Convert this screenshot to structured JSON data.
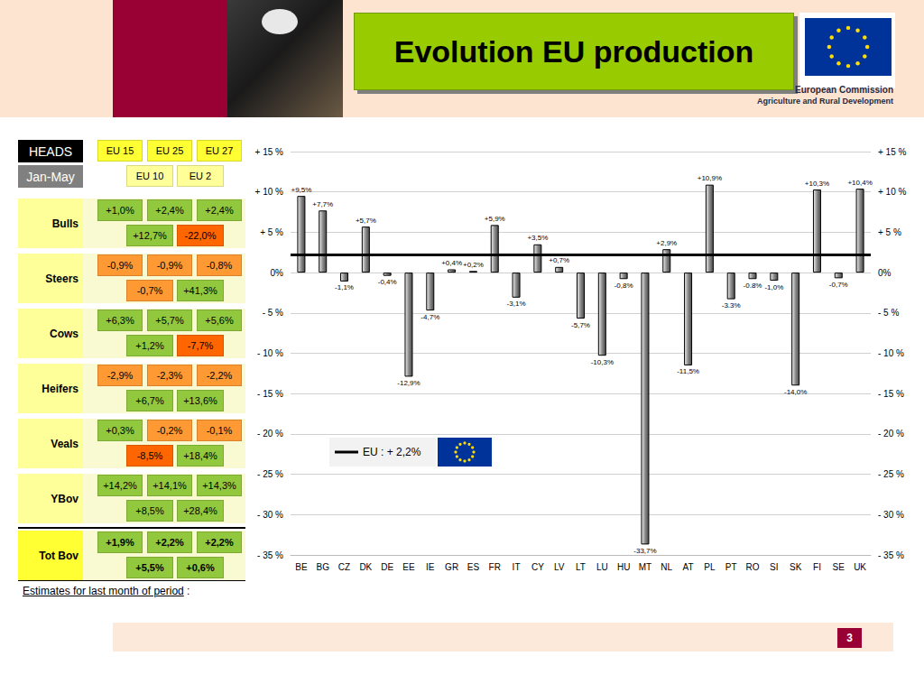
{
  "header": {
    "title": "Evolution EU production",
    "org": [
      "European Commission",
      "Agriculture and Rural Development"
    ]
  },
  "table": {
    "corner": [
      "HEADS",
      "Jan-May"
    ],
    "columns_top": [
      "EU 15",
      "EU 25",
      "EU 27"
    ],
    "columns_bottom": [
      "EU 10",
      "EU 2"
    ],
    "rows": [
      {
        "label": "Bulls",
        "top": [
          "+1,0%",
          "+2,4%",
          "+2,4%"
        ],
        "top_colors": [
          "#92c83e",
          "#92c83e",
          "#92c83e"
        ],
        "bottom": [
          "+12,7%",
          "-22,0%"
        ],
        "bottom_colors": [
          "#92c83e",
          "#ff6600"
        ]
      },
      {
        "label": "Steers",
        "top": [
          "-0,9%",
          "-0,9%",
          "-0,8%"
        ],
        "top_colors": [
          "#ff9933",
          "#ff9933",
          "#ff9933"
        ],
        "bottom": [
          "-0,7%",
          "+41,3%"
        ],
        "bottom_colors": [
          "#ff9933",
          "#92c83e"
        ]
      },
      {
        "label": "Cows",
        "top": [
          "+6,3%",
          "+5,7%",
          "+5,6%"
        ],
        "top_colors": [
          "#92c83e",
          "#92c83e",
          "#92c83e"
        ],
        "bottom": [
          "+1,2%",
          "-7,7%"
        ],
        "bottom_colors": [
          "#92c83e",
          "#ff6600"
        ]
      },
      {
        "label": "Heifers",
        "top": [
          "-2,9%",
          "-2,3%",
          "-2,2%"
        ],
        "top_colors": [
          "#ff9933",
          "#ff9933",
          "#ff9933"
        ],
        "bottom": [
          "+6,7%",
          "+13,6%"
        ],
        "bottom_colors": [
          "#92c83e",
          "#92c83e"
        ]
      },
      {
        "label": "Veals",
        "top": [
          "+0,3%",
          "-0,2%",
          "-0,1%"
        ],
        "top_colors": [
          "#92c83e",
          "#ff9933",
          "#ff9933"
        ],
        "bottom": [
          "-8,5%",
          "+18,4%"
        ],
        "bottom_colors": [
          "#ff6600",
          "#92c83e"
        ]
      },
      {
        "label": "YBov",
        "top": [
          "+14,2%",
          "+14,1%",
          "+14,3%"
        ],
        "top_colors": [
          "#92c83e",
          "#92c83e",
          "#92c83e"
        ],
        "bottom": [
          "+8,5%",
          "+28,4%"
        ],
        "bottom_colors": [
          "#92c83e",
          "#92c83e"
        ]
      }
    ],
    "total": {
      "label": "Tot Bov",
      "top": [
        "+1,9%",
        "+2,2%",
        "+2,2%"
      ],
      "top_colors": [
        "#92c83e",
        "#92c83e",
        "#92c83e"
      ],
      "bottom": [
        "+5,5%",
        "+0,6%"
      ],
      "bottom_colors": [
        "#92c83e",
        "#92c83e"
      ]
    }
  },
  "chart_data": {
    "type": "bar",
    "categories": [
      "BE",
      "BG",
      "CZ",
      "DK",
      "DE",
      "EE",
      "IE",
      "GR",
      "ES",
      "FR",
      "IT",
      "CY",
      "LV",
      "LT",
      "LU",
      "HU",
      "MT",
      "NL",
      "AT",
      "PL",
      "PT",
      "RO",
      "SI",
      "SK",
      "FI",
      "SE",
      "UK"
    ],
    "values": [
      9.5,
      7.7,
      -1.1,
      5.7,
      -0.4,
      -12.9,
      -4.7,
      0.4,
      0.2,
      5.9,
      -3.1,
      3.5,
      0.7,
      -5.7,
      -10.3,
      -0.8,
      -33.7,
      2.9,
      -11.5,
      10.9,
      -3.3,
      -0.8,
      -1.0,
      -14.0,
      10.3,
      -0.7,
      10.4
    ],
    "value_labels": [
      "+9,5%",
      "+7,7%",
      "-1,1%",
      "+5,7%",
      "-0,4%",
      "-12,9%",
      "-4,7%",
      "+0,4%",
      "+0,2%",
      "+5,9%",
      "-3,1%",
      "+3,5%",
      "+0,7%",
      "-5,7%",
      "-10,3%",
      "-0,8%",
      "-33,7%",
      "+2,9%",
      "-11,5%",
      "+10,9%",
      "-3.3%",
      "-0.8%",
      "-1,0%",
      "-14,0%",
      "+10,3%",
      "-0,7%",
      "+10,4%"
    ],
    "color": "#8c8c8c",
    "data_labels": true,
    "grid": true,
    "ylim": [
      -35,
      15
    ],
    "yticks": [
      {
        "value": -35,
        "label": "- 35 %"
      },
      {
        "value": -30,
        "label": "- 30 %"
      },
      {
        "value": -25,
        "label": "- 25 %"
      },
      {
        "value": -20,
        "label": "- 20 %"
      },
      {
        "value": -15,
        "label": "- 15 %"
      },
      {
        "value": -10,
        "label": "- 10 %"
      },
      {
        "value": -5,
        "label": "- 5 %"
      },
      {
        "value": 0,
        "label": "0%"
      },
      {
        "value": 5,
        "label": "+ 5 %"
      },
      {
        "value": 10,
        "label": "+ 10 %"
      },
      {
        "value": 15,
        "label": "+ 15 %"
      }
    ],
    "y2lim": [
      -35,
      15
    ],
    "y2ticks": [
      {
        "value": -35,
        "label": "- 35 %"
      },
      {
        "value": -30,
        "label": "- 30 %"
      },
      {
        "value": -25,
        "label": "- 25 %"
      },
      {
        "value": -20,
        "label": "- 20 %"
      },
      {
        "value": -15,
        "label": "- 15 %"
      },
      {
        "value": -10,
        "label": "- 10 %"
      },
      {
        "value": -5,
        "label": "- 5 %"
      },
      {
        "value": 0,
        "label": "0%"
      },
      {
        "value": 5,
        "label": "+ 5 %"
      },
      {
        "value": 10,
        "label": "+ 10 %"
      },
      {
        "value": 15,
        "label": "+ 15 %"
      }
    ],
    "reference_line": {
      "value": 2.2,
      "label": "EU : + 2,2%"
    }
  },
  "footer": {
    "note": "Estimates for last month of period",
    "note_suffix": " :",
    "page": "3"
  }
}
